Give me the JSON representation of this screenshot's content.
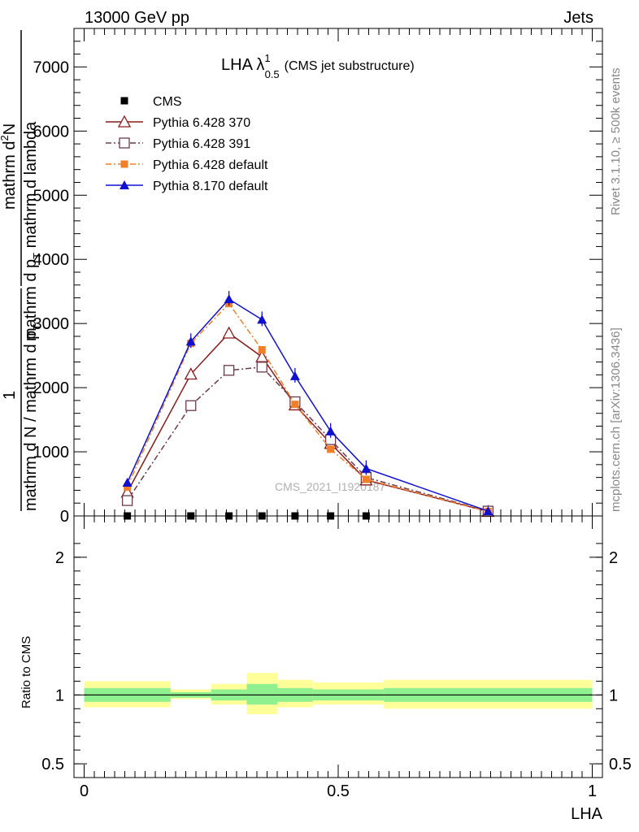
{
  "header": {
    "energy_label": "13000 GeV pp",
    "process_label": "Jets"
  },
  "side_labels": {
    "rivet": "Rivet 3.1.10, ≥ 500k events",
    "mcplots": "mcplots.cern.ch [arXiv:1306.3436]"
  },
  "watermark": "CMS_2021_I1920187",
  "chart_data": [
    {
      "type": "line",
      "title_main": "LHA λ",
      "title_sup": "1",
      "title_sub": "0.5",
      "title_suffix": "(CMS jet substructure)",
      "ylabel_numerator_1": "1",
      "ylabel_denominator_1": "mathrm d N / mathrm d p",
      "ylabel_denominator_1_sub": "T",
      "ylabel_numerator_2": "mathrm d",
      "ylabel_numerator_2_sup": "2",
      "ylabel_numerator_2_rest": "N",
      "ylabel_denominator_2": "mathrm d p",
      "ylabel_denominator_2_sub": "T",
      "ylabel_denominator_2_rest": " mathrm d lambda",
      "ylim": [
        0,
        7600
      ],
      "xlim": [
        -0.02,
        1.02
      ],
      "yticks": [
        0,
        1000,
        2000,
        3000,
        4000,
        5000,
        6000,
        7000
      ],
      "ytick_labels": [
        "0",
        "1000",
        "2000",
        "3000",
        "4000",
        "5000",
        "6000",
        "7000"
      ],
      "legend_position": "top-left",
      "series": [
        {
          "name": "CMS",
          "color": "#000000",
          "marker": "square",
          "x": [
            0.085,
            0.21,
            0.285,
            0.35,
            0.415,
            0.485,
            0.555
          ],
          "y": [
            0,
            0,
            0,
            0,
            0,
            0,
            0
          ]
        },
        {
          "name": "Pythia 6.428 370",
          "color": "#8b1a1a",
          "marker": "triangle-open",
          "dash": "solid",
          "x": [
            0.085,
            0.21,
            0.285,
            0.35,
            0.415,
            0.485,
            0.555,
            0.795
          ],
          "y": [
            370,
            2210,
            2850,
            2480,
            1730,
            1130,
            560,
            70
          ]
        },
        {
          "name": "Pythia 6.428 391",
          "color": "#6b3a4a",
          "marker": "square-open",
          "dash": "dashdot",
          "x": [
            0.085,
            0.21,
            0.285,
            0.35,
            0.415,
            0.485,
            0.555,
            0.795
          ],
          "y": [
            240,
            1720,
            2270,
            2320,
            1780,
            1190,
            600,
            75
          ]
        },
        {
          "name": "Pythia 6.428 default",
          "color": "#f07f2a",
          "marker": "square-filled",
          "dash": "dashdot",
          "x": [
            0.085,
            0.21,
            0.285,
            0.35,
            0.415,
            0.485,
            0.555,
            0.795
          ],
          "y": [
            450,
            2690,
            3310,
            2590,
            1740,
            1040,
            570,
            70
          ]
        },
        {
          "name": "Pythia 8.170 default",
          "color": "#1010d0",
          "marker": "triangle-filled",
          "dash": "solid",
          "x": [
            0.085,
            0.21,
            0.285,
            0.35,
            0.415,
            0.485,
            0.555,
            0.795
          ],
          "y": [
            520,
            2720,
            3380,
            3060,
            2180,
            1320,
            740,
            75
          ]
        }
      ]
    },
    {
      "type": "area",
      "ylabel": "Ratio to CMS",
      "xlabel": "LHA",
      "ylim": [
        0.4,
        2.3
      ],
      "xlim": [
        -0.02,
        1.02
      ],
      "yticks": [
        0.5,
        1,
        2
      ],
      "ytick_labels": [
        "0.5",
        "1",
        "2"
      ],
      "xticks": [
        0,
        0.5,
        1
      ],
      "xtick_labels": [
        "0",
        "0.5",
        "1"
      ],
      "reference_line": 1,
      "bands": [
        {
          "x0": 0.0,
          "x1": 0.17,
          "inner": [
            0.95,
            1.05
          ],
          "outer": [
            0.91,
            1.1
          ]
        },
        {
          "x0": 0.17,
          "x1": 0.25,
          "inner": [
            0.98,
            1.02
          ],
          "outer": [
            0.97,
            1.04
          ]
        },
        {
          "x0": 0.25,
          "x1": 0.32,
          "inner": [
            0.96,
            1.04
          ],
          "outer": [
            0.93,
            1.08
          ]
        },
        {
          "x0": 0.32,
          "x1": 0.38,
          "inner": [
            0.93,
            1.08
          ],
          "outer": [
            0.86,
            1.16
          ]
        },
        {
          "x0": 0.38,
          "x1": 0.45,
          "inner": [
            0.95,
            1.05
          ],
          "outer": [
            0.91,
            1.11
          ]
        },
        {
          "x0": 0.45,
          "x1": 0.59,
          "inner": [
            0.96,
            1.04
          ],
          "outer": [
            0.93,
            1.09
          ]
        },
        {
          "x0": 0.59,
          "x1": 1.0,
          "inner": [
            0.95,
            1.05
          ],
          "outer": [
            0.9,
            1.11
          ]
        }
      ]
    }
  ]
}
